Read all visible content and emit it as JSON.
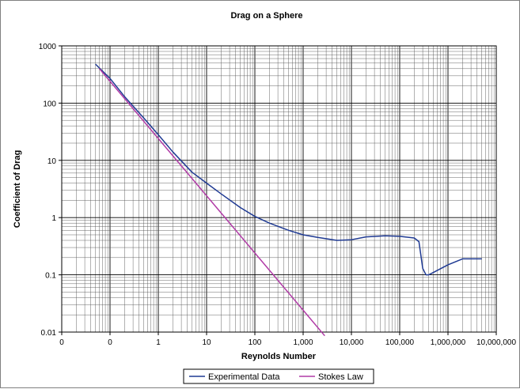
{
  "chart_data": {
    "type": "line",
    "title": "Drag on a Sphere",
    "xlabel": "Reynolds Number",
    "ylabel": "Coefficient of Drag",
    "x_scale": "log",
    "y_scale": "log",
    "xlim": [
      0.01,
      10000000
    ],
    "ylim": [
      0.01,
      1000
    ],
    "grid": true,
    "x_tick_values": [
      0.01,
      0.1,
      1,
      10,
      100,
      1000,
      10000,
      100000,
      1000000,
      10000000
    ],
    "x_tick_labels": [
      "0",
      "0",
      "1",
      "10",
      "100",
      "1,000",
      "10,000",
      "100,000",
      "1,000,000",
      "10,000,000"
    ],
    "y_tick_values": [
      1000,
      100,
      10,
      1,
      0.1,
      0.01
    ],
    "y_tick_labels": [
      "1000",
      "100",
      "10",
      "1",
      "0.1",
      "0.01"
    ],
    "legend_position": "bottom",
    "series": [
      {
        "name": "Experimental Data",
        "color": "#1f3a93",
        "x": [
          0.05,
          0.1,
          0.2,
          0.5,
          1,
          2,
          5,
          10,
          20,
          50,
          100,
          200,
          500,
          1000,
          2000,
          5000,
          10000,
          20000,
          50000,
          100000,
          200000,
          250000,
          300000,
          350000,
          400000,
          500000,
          1000000,
          2000000,
          5000000
        ],
        "y": [
          480,
          270,
          130,
          55,
          28,
          14,
          6.2,
          4.0,
          2.6,
          1.5,
          1.05,
          0.8,
          0.6,
          0.5,
          0.45,
          0.4,
          0.41,
          0.46,
          0.48,
          0.47,
          0.44,
          0.38,
          0.13,
          0.1,
          0.1,
          0.11,
          0.15,
          0.19,
          0.19
        ]
      },
      {
        "name": "Stokes Law",
        "color": "#b03aa6",
        "x": [
          0.06,
          2800
        ],
        "y": [
          400,
          0.0086
        ]
      }
    ]
  }
}
